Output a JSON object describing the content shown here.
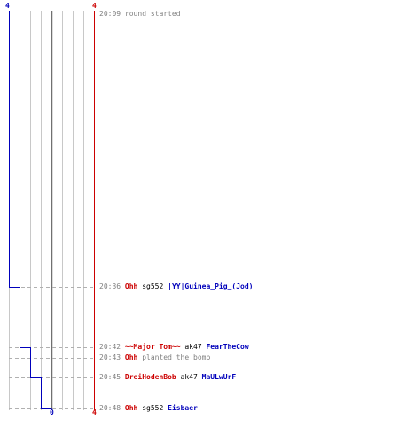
{
  "scores": {
    "blue_start": "4",
    "red_start": "4",
    "blue_end": "0",
    "red_end": "4"
  },
  "colors": {
    "blue_team": "#0000bb",
    "red_team": "#cc0000",
    "grid": "#c8c8c8",
    "center": "#707070",
    "timeline": "#808080"
  },
  "events": [
    {
      "time": "20:09",
      "kind": "message",
      "text": "round started"
    },
    {
      "time": "20:36",
      "kind": "kill",
      "killer": "Ohh",
      "killer_team": "red",
      "weapon": "sg552",
      "victim": "|YY|Guinea_Pig_(Jod)",
      "victim_team": "blue"
    },
    {
      "time": "20:42",
      "kind": "kill",
      "killer": "~~Major Tom~~",
      "killer_team": "red",
      "weapon": "ak47",
      "victim": "FearTheCow",
      "victim_team": "blue"
    },
    {
      "time": "20:43",
      "kind": "action",
      "actor": "Ohh",
      "actor_team": "red",
      "text": "planted the bomb"
    },
    {
      "time": "20:45",
      "kind": "kill",
      "killer": "DreiHodenBob",
      "killer_team": "red",
      "weapon": "ak47",
      "victim": "MaULwUrF",
      "victim_team": "blue"
    },
    {
      "time": "20:48",
      "kind": "kill",
      "killer": "Ohh",
      "killer_team": "red",
      "weapon": "sg552",
      "victim": "Eisbaer",
      "victim_team": "blue"
    }
  ]
}
